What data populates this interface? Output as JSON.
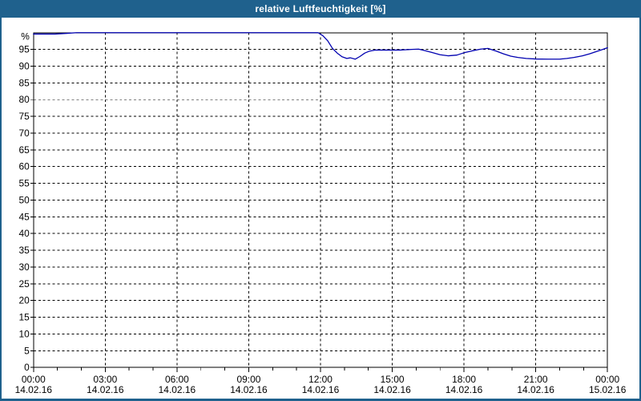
{
  "window": {
    "title": "relative Luftfeuchtigkeit [%]",
    "titlebar_color": "#1F618D",
    "background_color": "#FFFFFF"
  },
  "chart_data": {
    "type": "line",
    "title": "relative Luftfeuchtigkeit [%]",
    "ylabel_unit": "%",
    "grid": "dashed",
    "legend_position": "none",
    "ylim": [
      0,
      100
    ],
    "xlim_hours": [
      0,
      24
    ],
    "y_tick_step": 5,
    "y_ticks": [
      0,
      5,
      10,
      15,
      20,
      25,
      30,
      35,
      40,
      45,
      50,
      55,
      60,
      65,
      70,
      75,
      80,
      85,
      90,
      95
    ],
    "x_major_tick_hours": 3,
    "x_minor_tick_hours": 1,
    "x_ticks": [
      {
        "hour": 0,
        "time": "00:00",
        "date": "14.02.16"
      },
      {
        "hour": 3,
        "time": "03:00",
        "date": "14.02.16"
      },
      {
        "hour": 6,
        "time": "06:00",
        "date": "14.02.16"
      },
      {
        "hour": 9,
        "time": "09:00",
        "date": "14.02.16"
      },
      {
        "hour": 12,
        "time": "12:00",
        "date": "14.02.16"
      },
      {
        "hour": 15,
        "time": "15:00",
        "date": "14.02.16"
      },
      {
        "hour": 18,
        "time": "18:00",
        "date": "14.02.16"
      },
      {
        "hour": 21,
        "time": "21:00",
        "date": "14.02.16"
      },
      {
        "hour": 24,
        "time": "00:00",
        "date": "15.02.16"
      }
    ],
    "series": [
      {
        "name": "relative Luftfeuchtigkeit",
        "color": "#0000B0",
        "points": [
          [
            0.0,
            99.6
          ],
          [
            0.9,
            99.6
          ],
          [
            1.4,
            99.8
          ],
          [
            1.8,
            100
          ],
          [
            3.0,
            100
          ],
          [
            5.0,
            100
          ],
          [
            7.0,
            100
          ],
          [
            9.0,
            100
          ],
          [
            11.0,
            100
          ],
          [
            11.9,
            100
          ],
          [
            12.1,
            99.1
          ],
          [
            12.3,
            97.6
          ],
          [
            12.5,
            95.3
          ],
          [
            12.7,
            93.9
          ],
          [
            12.9,
            92.8
          ],
          [
            13.1,
            92.3
          ],
          [
            13.25,
            92.5
          ],
          [
            13.45,
            92.1
          ],
          [
            13.65,
            92.9
          ],
          [
            13.85,
            93.9
          ],
          [
            14.05,
            94.5
          ],
          [
            14.3,
            94.8
          ],
          [
            14.8,
            94.8
          ],
          [
            15.3,
            94.8
          ],
          [
            15.8,
            95.0
          ],
          [
            16.1,
            95.1
          ],
          [
            16.4,
            94.6
          ],
          [
            16.7,
            94.0
          ],
          [
            17.0,
            93.4
          ],
          [
            17.35,
            93.1
          ],
          [
            17.7,
            93.3
          ],
          [
            18.0,
            94.0
          ],
          [
            18.35,
            94.6
          ],
          [
            18.7,
            95.1
          ],
          [
            19.0,
            95.3
          ],
          [
            19.35,
            94.5
          ],
          [
            19.65,
            93.7
          ],
          [
            19.95,
            93.0
          ],
          [
            20.25,
            92.6
          ],
          [
            20.6,
            92.3
          ],
          [
            21.0,
            92.15
          ],
          [
            21.5,
            92.1
          ],
          [
            22.0,
            92.1
          ],
          [
            22.3,
            92.3
          ],
          [
            22.6,
            92.6
          ],
          [
            22.95,
            93.1
          ],
          [
            23.25,
            93.7
          ],
          [
            23.55,
            94.4
          ],
          [
            23.8,
            95.0
          ],
          [
            24.0,
            95.5
          ]
        ]
      }
    ]
  }
}
